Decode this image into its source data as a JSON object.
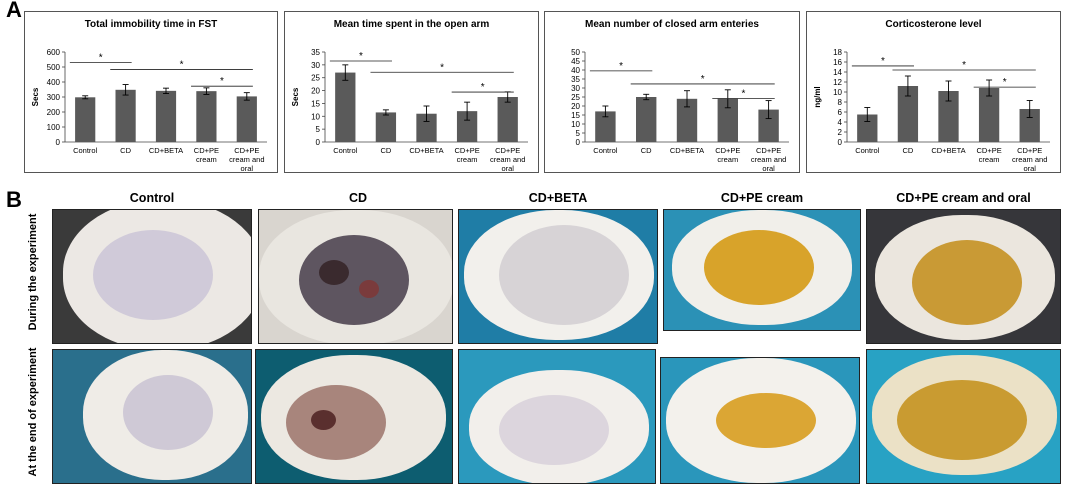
{
  "panel_labels": {
    "a": "A",
    "b": "B"
  },
  "chart_data": [
    {
      "type": "bar",
      "title": "Total immobility time in FST",
      "ylabel": "Secs",
      "ylim": [
        0,
        600
      ],
      "yticks": [
        0,
        100,
        200,
        300,
        400,
        500,
        600
      ],
      "categories": [
        "Control",
        "CD",
        "CD+BETA",
        "CD+PE cream",
        "CD+PE cream and oral"
      ],
      "category_lines": [
        [
          "Control"
        ],
        [
          "CD"
        ],
        [
          "CD+BETA"
        ],
        [
          "CD+PE",
          "cream"
        ],
        [
          "CD+PE",
          "cream and",
          "oral"
        ]
      ],
      "values": [
        298,
        348,
        341,
        339,
        304
      ],
      "errors": [
        10,
        35,
        18,
        22,
        25
      ],
      "significance": [
        {
          "from": 0,
          "to": 1,
          "label": "*",
          "level": 0.885
        },
        {
          "from": 1,
          "to": 4,
          "label": "*",
          "level": 0.805
        },
        {
          "from": 3,
          "to": 4,
          "label": "*",
          "level": 0.62
        }
      ]
    },
    {
      "type": "bar",
      "title": "Mean time spent in the open arm",
      "ylabel": "Secs",
      "ylim": [
        0,
        35
      ],
      "yticks": [
        0,
        5,
        10,
        15,
        20,
        25,
        30,
        35
      ],
      "categories": [
        "Control",
        "CD",
        "CD+BETA",
        "CD+PE cream",
        "CD+PE cream and oral"
      ],
      "category_lines": [
        [
          "Control"
        ],
        [
          "CD"
        ],
        [
          "CD+BETA"
        ],
        [
          "CD+PE",
          "cream"
        ],
        [
          "CD+PE",
          "cream and",
          "oral"
        ]
      ],
      "values": [
        27,
        11.5,
        11,
        12,
        17.5
      ],
      "errors": [
        3,
        1,
        3,
        3.5,
        2
      ],
      "significance": [
        {
          "from": 0,
          "to": 1,
          "label": "*",
          "level": 0.9
        },
        {
          "from": 1,
          "to": 4,
          "label": "*",
          "level": 0.775
        },
        {
          "from": 3,
          "to": 4,
          "label": "*",
          "level": 0.555
        }
      ]
    },
    {
      "type": "bar",
      "title": "Mean number of closed arm enteries",
      "ylabel": "",
      "ylim": [
        0,
        50
      ],
      "yticks": [
        0,
        5,
        10,
        15,
        20,
        25,
        30,
        35,
        40,
        45,
        50
      ],
      "categories": [
        "Control",
        "CD",
        "CD+BETA",
        "CD+PE cream",
        "CD+PE cream and oral"
      ],
      "category_lines": [
        [
          "Control"
        ],
        [
          "CD"
        ],
        [
          "CD+BETA"
        ],
        [
          "CD+PE",
          "cream"
        ],
        [
          "CD+PE",
          "cream and",
          "oral"
        ]
      ],
      "values": [
        17,
        25,
        24,
        24,
        18
      ],
      "errors": [
        3,
        1.5,
        4.5,
        5,
        5
      ],
      "significance": [
        {
          "from": 0,
          "to": 1,
          "label": "*",
          "level": 0.79
        },
        {
          "from": 1,
          "to": 4,
          "label": "*",
          "level": 0.645
        },
        {
          "from": 3,
          "to": 4,
          "label": "*",
          "level": 0.485
        }
      ]
    },
    {
      "type": "bar",
      "title": "Corticosterone level",
      "ylabel": "ng/ml",
      "ylim": [
        0,
        18
      ],
      "yticks": [
        0,
        2,
        4,
        6,
        8,
        10,
        12,
        14,
        16,
        18
      ],
      "categories": [
        "Control",
        "CD",
        "CD+BETA",
        "CD+PE cream",
        "CD+PE cream and oral"
      ],
      "category_lines": [
        [
          "Control"
        ],
        [
          "CD"
        ],
        [
          "CD+BETA"
        ],
        [
          "CD+PE",
          "cream"
        ],
        [
          "CD+PE",
          "cream and",
          "oral"
        ]
      ],
      "values": [
        5.5,
        11.2,
        10.2,
        10.8,
        6.6
      ],
      "errors": [
        1.4,
        2,
        2,
        1.6,
        1.7
      ],
      "significance": [
        {
          "from": 0,
          "to": 1,
          "label": "*",
          "level": 0.845
        },
        {
          "from": 1,
          "to": 4,
          "label": "*",
          "level": 0.8
        },
        {
          "from": 3,
          "to": 4,
          "label": "*",
          "level": 0.61
        }
      ]
    }
  ],
  "photo_grid": {
    "columns": [
      "Control",
      "CD",
      "CD+BETA",
      "CD+PE cream",
      "CD+PE cream and oral"
    ],
    "rows": [
      "During the experiment",
      "At the end of experiment"
    ]
  },
  "colors": {
    "bar": "#5a5a5a",
    "error": "#000000",
    "cream": "#e7b21f",
    "lesion": "#6b4a48",
    "bedding": "#2f8fb4",
    "fur": "#f1efe9"
  }
}
